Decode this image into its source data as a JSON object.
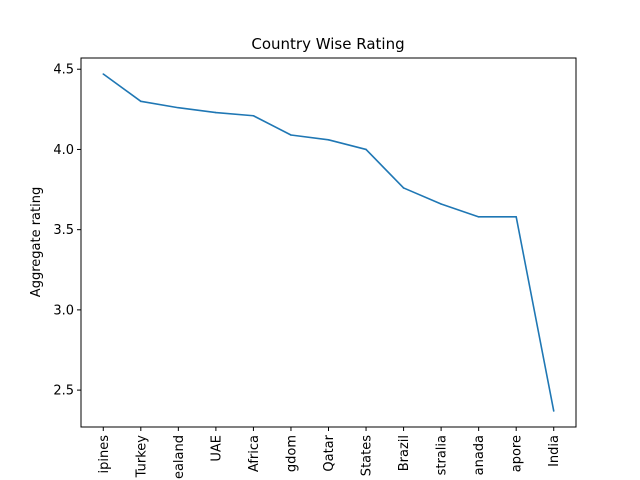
{
  "chart_data": {
    "type": "line",
    "title": "Country Wise Rating",
    "xlabel": "",
    "ylabel": "Aggregate rating",
    "categories": [
      "Philippines",
      "Turkey",
      "New Zealand",
      "UAE",
      "South Africa",
      "United Kingdom",
      "Qatar",
      "United States",
      "Brazil",
      "Australia",
      "Canada",
      "Singapore",
      "India"
    ],
    "tick_labels_visible": [
      "ipines",
      "Turkey",
      "ealand",
      "UAE",
      "Africa",
      "gdom",
      "Qatar",
      "States",
      "Brazil",
      "stralia",
      "anada",
      "apore",
      "India"
    ],
    "values": [
      4.47,
      4.3,
      4.26,
      4.23,
      4.21,
      4.09,
      4.06,
      4.0,
      3.76,
      3.66,
      3.58,
      3.58,
      2.37
    ],
    "ylim": [
      2.27,
      4.57
    ],
    "yticks": [
      2.5,
      3.0,
      3.5,
      4.0,
      4.5
    ],
    "ytick_labels": [
      "2.5",
      "3.0",
      "3.5",
      "4.0",
      "4.5"
    ],
    "grid": false,
    "legend": "none",
    "line_color": "#1f77b4"
  }
}
